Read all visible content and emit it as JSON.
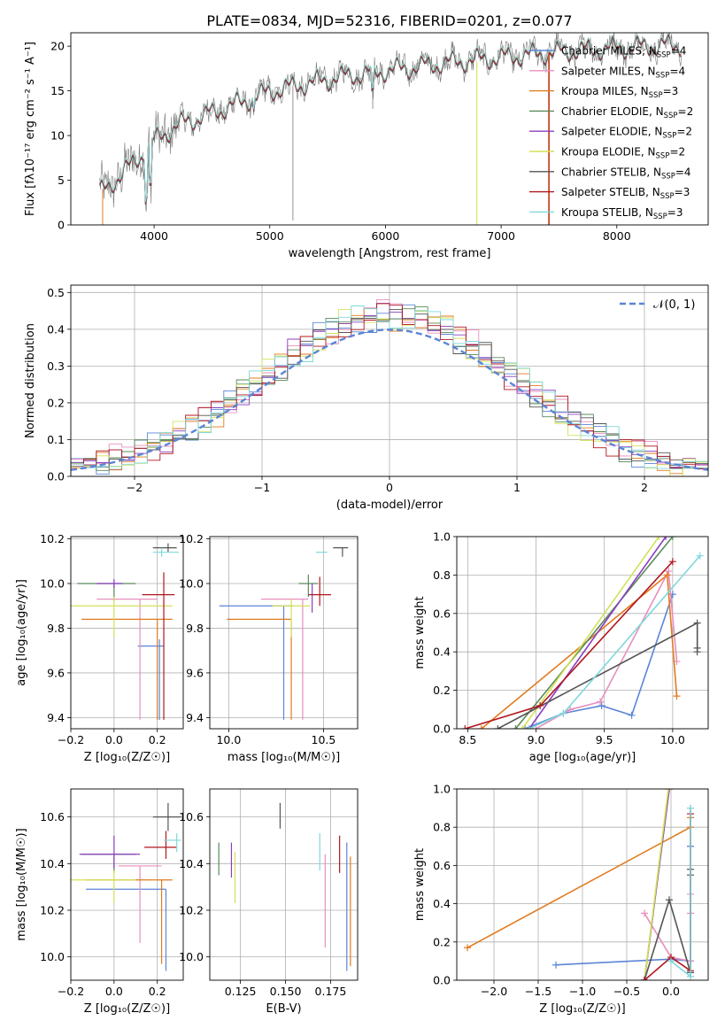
{
  "figure": {
    "title": "PLATE=0834, MJD=52316, FIBERID=0201, z=0.077"
  },
  "chart_data": [
    {
      "id": "spectrum",
      "type": "line",
      "xlabel": "wavelength [Angstrom, rest frame]",
      "ylabel": "Flux [fλ10⁻¹⁷ erg cm⁻² s⁻¹ A⁻¹]",
      "xlim": [
        3280,
        8790
      ],
      "ylim": [
        0,
        21.5
      ],
      "xticks": [
        4000,
        5000,
        6000,
        7000,
        8000
      ],
      "yticks": [
        0,
        5,
        10,
        15,
        20
      ],
      "grid": false,
      "legend_position": "right",
      "series": [
        {
          "name": "Chabrier MILES, N_SSP=4",
          "color": "#5b85d6"
        },
        {
          "name": "Salpeter MILES, N_SSP=4",
          "color": "#e88fbf"
        },
        {
          "name": "Kroupa MILES, N_SSP=3",
          "color": "#e07b1f"
        },
        {
          "name": "Chabrier ELODIE, N_SSP=2",
          "color": "#5a8a5a"
        },
        {
          "name": "Salpeter ELODIE, N_SSP=2",
          "color": "#8b3fbf"
        },
        {
          "name": "Kroupa ELODIE, N_SSP=2",
          "color": "#d4e157"
        },
        {
          "name": "Chabrier STELIB, N_SSP=4",
          "color": "#555555"
        },
        {
          "name": "Salpeter STELIB, N_SSP=3",
          "color": "#b0171f"
        },
        {
          "name": "Kroupa STELIB, N_SSP=3",
          "color": "#7fd8dc"
        }
      ],
      "data_color": "#777777",
      "continuum": [
        [
          3530,
          3.6
        ],
        [
          3700,
          5.5
        ],
        [
          3900,
          8.0
        ],
        [
          4000,
          9.5
        ],
        [
          4200,
          11.2
        ],
        [
          4500,
          12.6
        ],
        [
          4800,
          14.0
        ],
        [
          5000,
          15.0
        ],
        [
          5300,
          15.8
        ],
        [
          5600,
          16.6
        ],
        [
          6000,
          17.3
        ],
        [
          6300,
          17.8
        ],
        [
          6600,
          18.3
        ],
        [
          7000,
          18.8
        ],
        [
          7400,
          19.3
        ],
        [
          7800,
          19.7
        ],
        [
          8200,
          20.0
        ],
        [
          8500,
          20.2
        ]
      ]
    },
    {
      "id": "residuals",
      "type": "histogram",
      "xlabel": "(data-model)/error",
      "ylabel": "Normed distribution",
      "xlim": [
        -2.5,
        2.5
      ],
      "ylim": [
        0,
        0.52
      ],
      "xticks": [
        -2,
        -1,
        0,
        1,
        2
      ],
      "yticks": [
        0.0,
        0.1,
        0.2,
        0.3,
        0.4,
        0.5
      ],
      "grid": true,
      "legend": "𝒩(0, 1)",
      "reference_color": "#5b85d6"
    },
    {
      "id": "age_vs_Z",
      "type": "scatter",
      "xlabel": "Z [log₁₀(Z/Z☉)]",
      "ylabel": "age  [log₁₀(age/yr)]",
      "xlim": [
        -0.2,
        0.32
      ],
      "ylim": [
        9.35,
        10.21
      ],
      "xticks": [
        -0.2,
        0.0,
        0.2
      ],
      "yticks": [
        9.4,
        9.6,
        9.8,
        10.0,
        10.2
      ],
      "grid": true,
      "points": [
        {
          "model": "Chabrier MILES",
          "x": 0.21,
          "y": 9.72,
          "xerr": [
            0.1,
            0.02
          ],
          "yerr": [
            0.33,
            0.03
          ],
          "color": "#5b85d6"
        },
        {
          "model": "Salpeter MILES",
          "x": 0.12,
          "y": 9.93,
          "xerr": [
            0.2,
            0.08
          ],
          "yerr": [
            0.54,
            0.0
          ],
          "color": "#e88fbf"
        },
        {
          "model": "Kroupa MILES",
          "x": 0.2,
          "y": 9.84,
          "xerr": [
            0.35,
            0.07
          ],
          "yerr": [
            0.45,
            0.0
          ],
          "color": "#e07b1f"
        },
        {
          "model": "Chabrier ELODIE",
          "x": 0.0,
          "y": 10.0,
          "xerr": [
            0.17,
            0.1
          ],
          "yerr": [
            0.08,
            0.0
          ],
          "color": "#5a8a5a"
        },
        {
          "model": "Salpeter ELODIE",
          "x": 0.0,
          "y": 10.0,
          "xerr": [
            0.08,
            0.04
          ],
          "yerr": [
            0.02,
            0.02
          ],
          "color": "#8b3fbf"
        },
        {
          "model": "Kroupa ELODIE",
          "x": 0.0,
          "y": 9.9,
          "xerr": [
            0.2,
            0.27
          ],
          "yerr": [
            0.14,
            0.04
          ],
          "color": "#d4e157"
        },
        {
          "model": "Chabrier STELIB",
          "x": 0.25,
          "y": 10.16,
          "xerr": [
            0.07,
            0.04
          ],
          "yerr": [
            0.02,
            0.02
          ],
          "color": "#555555"
        },
        {
          "model": "Salpeter STELIB",
          "x": 0.23,
          "y": 9.95,
          "xerr": [
            0.1,
            0.05
          ],
          "yerr": [
            0.56,
            0.1
          ],
          "color": "#b0171f"
        },
        {
          "model": "Kroupa STELIB",
          "x": 0.22,
          "y": 10.14,
          "xerr": [
            0.04,
            0.08
          ],
          "yerr": [
            0.02,
            0.02
          ],
          "color": "#7fd8dc"
        }
      ]
    },
    {
      "id": "age_vs_mass",
      "type": "scatter",
      "xlabel": "mass [log₁₀(M/M☉)]",
      "ylabel": "",
      "xlim": [
        9.9,
        10.68
      ],
      "ylim": [
        9.35,
        10.21
      ],
      "xticks": [
        10.0,
        10.5
      ],
      "yticks": [
        9.4,
        9.6,
        9.8,
        10.0,
        10.2
      ],
      "grid": true,
      "points": [
        {
          "model": "Chabrier MILES",
          "x": 10.29,
          "y": 9.9,
          "xerr": [
            0.34,
            0.05
          ],
          "yerr": [
            0.51,
            0.0
          ],
          "color": "#5b85d6"
        },
        {
          "model": "Salpeter MILES",
          "x": 10.39,
          "y": 9.93,
          "xerr": [
            0.22,
            0.03
          ],
          "yerr": [
            0.54,
            0.0
          ],
          "color": "#e88fbf"
        },
        {
          "model": "Kroupa MILES",
          "x": 10.33,
          "y": 9.84,
          "xerr": [
            0.34,
            0.0
          ],
          "yerr": [
            0.45,
            0.0
          ],
          "color": "#e07b1f"
        },
        {
          "model": "Chabrier ELODIE",
          "x": 10.42,
          "y": 10.0,
          "xerr": [
            0.05,
            0.05
          ],
          "yerr": [
            0.06,
            0.04
          ],
          "color": "#5a8a5a"
        },
        {
          "model": "Salpeter ELODIE",
          "x": 10.44,
          "y": 9.97,
          "xerr": [
            0.0,
            0.0
          ],
          "yerr": [
            0.1,
            0.03
          ],
          "color": "#8b3fbf"
        },
        {
          "model": "Kroupa ELODIE",
          "x": 10.33,
          "y": 9.9,
          "xerr": [
            0.1,
            0.1
          ],
          "yerr": [
            0.14,
            0.03
          ],
          "color": "#d4e157"
        },
        {
          "model": "Chabrier STELIB",
          "x": 10.6,
          "y": 10.16,
          "xerr": [
            0.05,
            0.03
          ],
          "yerr": [
            0.04,
            0.0
          ],
          "color": "#555555"
        },
        {
          "model": "Salpeter STELIB",
          "x": 10.48,
          "y": 9.95,
          "xerr": [
            0.06,
            0.06
          ],
          "yerr": [
            0.05,
            0.08
          ],
          "color": "#b0171f"
        },
        {
          "model": "Kroupa STELIB",
          "x": 10.5,
          "y": 10.14,
          "xerr": [
            0.04,
            0.02
          ],
          "yerr": [
            0.0,
            0.0
          ],
          "color": "#7fd8dc"
        }
      ]
    },
    {
      "id": "mass_weight_vs_age",
      "type": "line",
      "xlabel": "age  [log₁₀(age/yr)]",
      "ylabel": "mass weight",
      "xlim": [
        8.42,
        10.26
      ],
      "ylim": [
        0,
        1
      ],
      "xticks": [
        8.5,
        9.0,
        9.5,
        10.0
      ],
      "yticks": [
        0.0,
        0.2,
        0.4,
        0.6,
        0.8,
        1.0
      ],
      "grid": true,
      "series": [
        {
          "model": "Chabrier MILES",
          "x": [
            8.92,
            9.2,
            9.48,
            9.7,
            10.0
          ],
          "y": [
            0.0,
            0.08,
            0.12,
            0.07,
            0.7
          ],
          "color": "#5b85d6"
        },
        {
          "model": "Salpeter MILES",
          "x": [
            9.0,
            9.25,
            9.47,
            9.97,
            10.03
          ],
          "y": [
            0.0,
            0.1,
            0.14,
            0.82,
            0.35
          ],
          "color": "#e88fbf"
        },
        {
          "model": "Kroupa MILES",
          "x": [
            8.6,
            9.96,
            10.03
          ],
          "y": [
            0.0,
            0.8,
            0.17
          ],
          "color": "#e07b1f"
        },
        {
          "model": "Chabrier ELODIE",
          "x": [
            8.85,
            10.0
          ],
          "y": [
            0.0,
            1.0
          ],
          "color": "#5a8a5a"
        },
        {
          "model": "Salpeter ELODIE",
          "x": [
            8.95,
            9.95
          ],
          "y": [
            0.0,
            1.0
          ],
          "color": "#8b3fbf"
        },
        {
          "model": "Kroupa ELODIE",
          "x": [
            8.9,
            9.9
          ],
          "y": [
            0.0,
            1.0
          ],
          "color": "#d4e157"
        },
        {
          "model": "Chabrier STELIB",
          "x": [
            8.72,
            10.18,
            10.18,
            10.18
          ],
          "y": [
            0.0,
            0.55,
            0.42,
            0.4
          ],
          "color": "#555555"
        },
        {
          "model": "Salpeter STELIB",
          "x": [
            8.48,
            9.03,
            10.0
          ],
          "y": [
            0.0,
            0.12,
            0.87
          ],
          "color": "#b0171f"
        },
        {
          "model": "Kroupa STELIB",
          "x": [
            8.95,
            9.2,
            10.2
          ],
          "y": [
            0.0,
            0.08,
            0.9
          ],
          "color": "#7fd8dc"
        }
      ]
    },
    {
      "id": "mass_vs_Z",
      "type": "scatter",
      "xlabel": "Z [log₁₀(Z/Z☉)]",
      "ylabel": "mass [log₁₀(M/M☉)]",
      "xlim": [
        -0.2,
        0.32
      ],
      "ylim": [
        9.9,
        10.72
      ],
      "xticks": [
        -0.2,
        0.0,
        0.2
      ],
      "yticks": [
        10.0,
        10.2,
        10.4,
        10.6
      ],
      "grid": true,
      "points": [
        {
          "model": "Chabrier MILES",
          "x": 0.24,
          "y": 10.29,
          "xerr": [
            0.37,
            0.0
          ],
          "yerr": [
            0.35,
            0.0
          ],
          "color": "#5b85d6"
        },
        {
          "model": "Salpeter MILES",
          "x": 0.12,
          "y": 10.39,
          "xerr": [
            0.1,
            0.1
          ],
          "yerr": [
            0.33,
            0.0
          ],
          "color": "#e88fbf"
        },
        {
          "model": "Kroupa MILES",
          "x": 0.22,
          "y": 10.33,
          "xerr": [
            0.35,
            0.05
          ],
          "yerr": [
            0.36,
            0.0
          ],
          "color": "#e07b1f"
        },
        {
          "model": "Chabrier ELODIE",
          "x": 0.0,
          "y": 10.44,
          "xerr": [
            0.15,
            0.1
          ],
          "yerr": [
            0.08,
            0.0
          ],
          "color": "#5a8a5a"
        },
        {
          "model": "Salpeter ELODIE",
          "x": 0.0,
          "y": 10.44,
          "xerr": [
            0.16,
            0.12
          ],
          "yerr": [
            0.06,
            0.08
          ],
          "color": "#8b3fbf"
        },
        {
          "model": "Kroupa ELODIE",
          "x": 0.0,
          "y": 10.33,
          "xerr": [
            0.2,
            0.1
          ],
          "yerr": [
            0.1,
            0.04
          ],
          "color": "#d4e157"
        },
        {
          "model": "Chabrier STELIB",
          "x": 0.25,
          "y": 10.6,
          "xerr": [
            0.07,
            0.06
          ],
          "yerr": [
            0.06,
            0.06
          ],
          "color": "#555555"
        },
        {
          "model": "Salpeter STELIB",
          "x": 0.24,
          "y": 10.47,
          "xerr": [
            0.1,
            0.05
          ],
          "yerr": [
            0.05,
            0.07
          ],
          "color": "#b0171f"
        },
        {
          "model": "Kroupa STELIB",
          "x": 0.29,
          "y": 10.5,
          "xerr": [
            0.06,
            0.02
          ],
          "yerr": [
            0.05,
            0.03
          ],
          "color": "#7fd8dc"
        }
      ]
    },
    {
      "id": "mass_vs_ebv",
      "type": "scatter",
      "xlabel": "E(B-V)",
      "ylabel": "",
      "xlim": [
        0.108,
        0.19
      ],
      "ylim": [
        9.9,
        10.72
      ],
      "xticks": [
        0.125,
        0.15,
        0.175
      ],
      "xtick_labels": [
        "0.125",
        "0.150",
        "0.175"
      ],
      "yticks": [
        10.0,
        10.2,
        10.4,
        10.6
      ],
      "grid": true,
      "points": [
        {
          "model": "Chabrier MILES",
          "x": 0.184,
          "y": 10.29,
          "yerr": [
            0.35,
            0.2
          ],
          "color": "#5b85d6"
        },
        {
          "model": "Salpeter MILES",
          "x": 0.172,
          "y": 10.39,
          "yerr": [
            0.35,
            0.05
          ],
          "color": "#e88fbf"
        },
        {
          "model": "Kroupa MILES",
          "x": 0.186,
          "y": 10.33,
          "yerr": [
            0.37,
            0.1
          ],
          "color": "#e07b1f"
        },
        {
          "model": "Chabrier ELODIE",
          "x": 0.113,
          "y": 10.42,
          "yerr": [
            0.07,
            0.07
          ],
          "color": "#5a8a5a"
        },
        {
          "model": "Salpeter ELODIE",
          "x": 0.12,
          "y": 10.41,
          "yerr": [
            0.07,
            0.08
          ],
          "color": "#8b3fbf"
        },
        {
          "model": "Kroupa ELODIE",
          "x": 0.122,
          "y": 10.35,
          "yerr": [
            0.12,
            0.1
          ],
          "color": "#d4e157"
        },
        {
          "model": "Chabrier STELIB",
          "x": 0.147,
          "y": 10.6,
          "yerr": [
            0.05,
            0.06
          ],
          "color": "#555555"
        },
        {
          "model": "Salpeter STELIB",
          "x": 0.18,
          "y": 10.46,
          "yerr": [
            0.1,
            0.06
          ],
          "color": "#b0171f"
        },
        {
          "model": "Kroupa STELIB",
          "x": 0.169,
          "y": 10.45,
          "yerr": [
            0.08,
            0.08
          ],
          "color": "#7fd8dc"
        }
      ]
    },
    {
      "id": "mass_weight_vs_Z",
      "type": "line",
      "xlabel": "Z [log₁₀(Z/Z☉)]",
      "ylabel": "mass weight",
      "xlim": [
        -2.42,
        0.42
      ],
      "ylim": [
        0,
        1
      ],
      "xticks": [
        -2.0,
        -1.5,
        -1.0,
        -0.5,
        0.0
      ],
      "yticks": [
        0.0,
        0.2,
        0.4,
        0.6,
        0.8,
        1.0
      ],
      "grid": true,
      "series": [
        {
          "model": "Chabrier MILES",
          "x": [
            -1.3,
            0.0,
            0.22,
            0.22,
            0.22,
            0.22
          ],
          "y": [
            0.08,
            0.11,
            0.1,
            0.7,
            0.7,
            0.1
          ],
          "color": "#5b85d6"
        },
        {
          "model": "Salpeter MILES",
          "x": [
            -0.3,
            0.0,
            0.22,
            0.22,
            0.22,
            0.22
          ],
          "y": [
            0.35,
            0.12,
            0.1,
            0.35,
            0.45,
            0.9
          ],
          "color": "#e88fbf"
        },
        {
          "model": "Kroupa MILES",
          "x": [
            -2.3,
            0.22,
            0.22
          ],
          "y": [
            0.17,
            0.8,
            0.85
          ],
          "color": "#e07b1f"
        },
        {
          "model": "Chabrier ELODIE",
          "x": [
            -0.3,
            -0.02
          ],
          "y": [
            0.0,
            1.0
          ],
          "color": "#5a8a5a"
        },
        {
          "model": "Salpeter ELODIE",
          "x": [
            -0.3,
            -0.02
          ],
          "y": [
            0.0,
            1.0
          ],
          "color": "#8b3fbf"
        },
        {
          "model": "Kroupa ELODIE",
          "x": [
            -0.3,
            -0.03
          ],
          "y": [
            0.0,
            1.0
          ],
          "color": "#d4e157"
        },
        {
          "model": "Chabrier STELIB",
          "x": [
            -0.3,
            -0.02,
            0.22,
            0.22,
            0.22,
            0.22
          ],
          "y": [
            0.0,
            0.42,
            0.04,
            0.55,
            0.58,
            0.04
          ],
          "color": "#555555"
        },
        {
          "model": "Salpeter STELIB",
          "x": [
            -0.3,
            0.0,
            0.22,
            0.22
          ],
          "y": [
            0.0,
            0.12,
            0.05,
            0.87
          ],
          "color": "#b0171f"
        },
        {
          "model": "Kroupa STELIB",
          "x": [
            0.0,
            0.22,
            0.22,
            0.22
          ],
          "y": [
            0.1,
            0.02,
            0.9,
            0.02
          ],
          "color": "#7fd8dc"
        }
      ]
    }
  ]
}
